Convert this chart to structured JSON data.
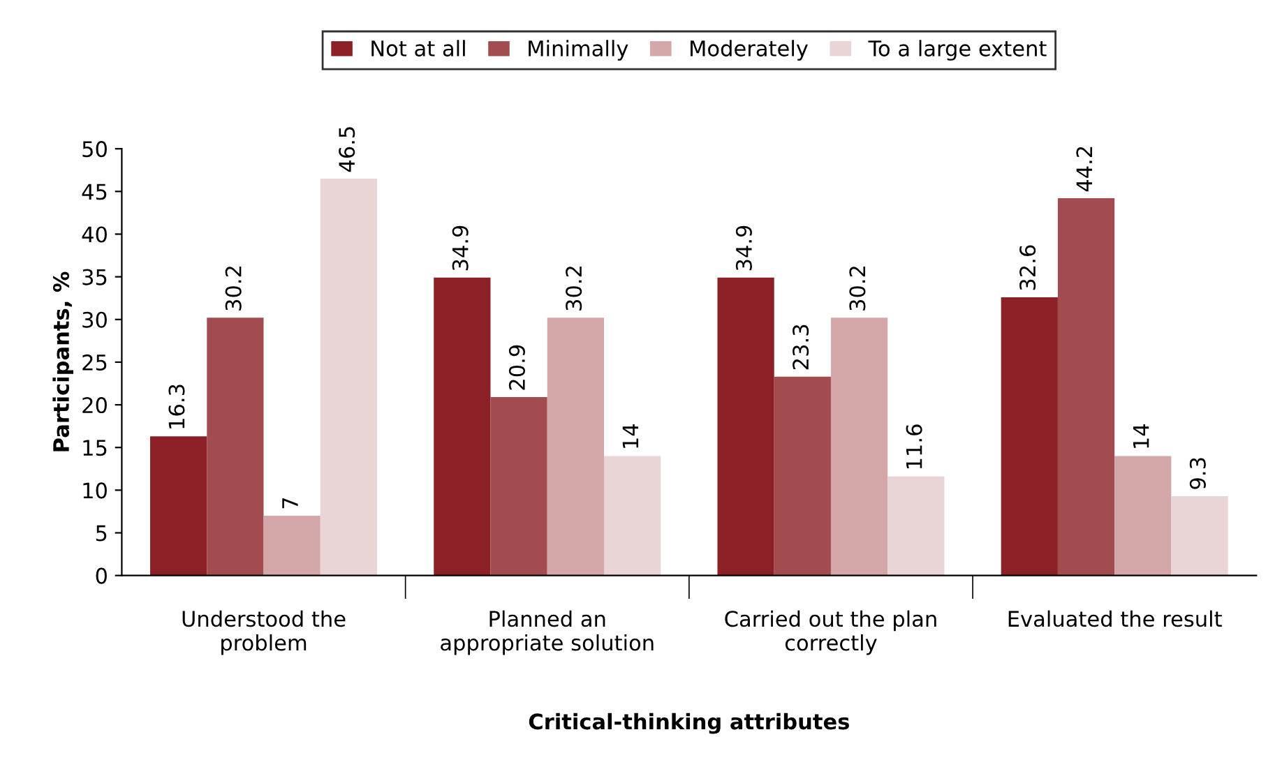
{
  "chart_data": {
    "type": "bar",
    "xlabel": "Critical-thinking attributes",
    "ylabel": "Participants, %",
    "categories": [
      "Understood the\nproblem",
      "Planned an\nappropriate solution",
      "Carried out the plan\ncorrectly",
      "Evaluated the result"
    ],
    "series": [
      {
        "name": "Not at all",
        "color": "#8b2126",
        "values": [
          16.3,
          34.9,
          34.9,
          32.6
        ]
      },
      {
        "name": "Minimally",
        "color": "#a24c4f",
        "values": [
          30.2,
          20.9,
          23.3,
          44.2
        ]
      },
      {
        "name": "Moderately",
        "color": "#d3a6a8",
        "values": [
          7,
          30.2,
          30.2,
          14
        ]
      },
      {
        "name": "To a large extent",
        "color": "#e9d4d6",
        "values": [
          46.5,
          14,
          11.6,
          9.3
        ]
      }
    ],
    "ylim": [
      0,
      50
    ],
    "yticks": [
      0,
      5,
      10,
      15,
      20,
      25,
      30,
      35,
      40,
      45,
      50
    ],
    "data_labels": true,
    "legend": "top",
    "grid": false
  }
}
